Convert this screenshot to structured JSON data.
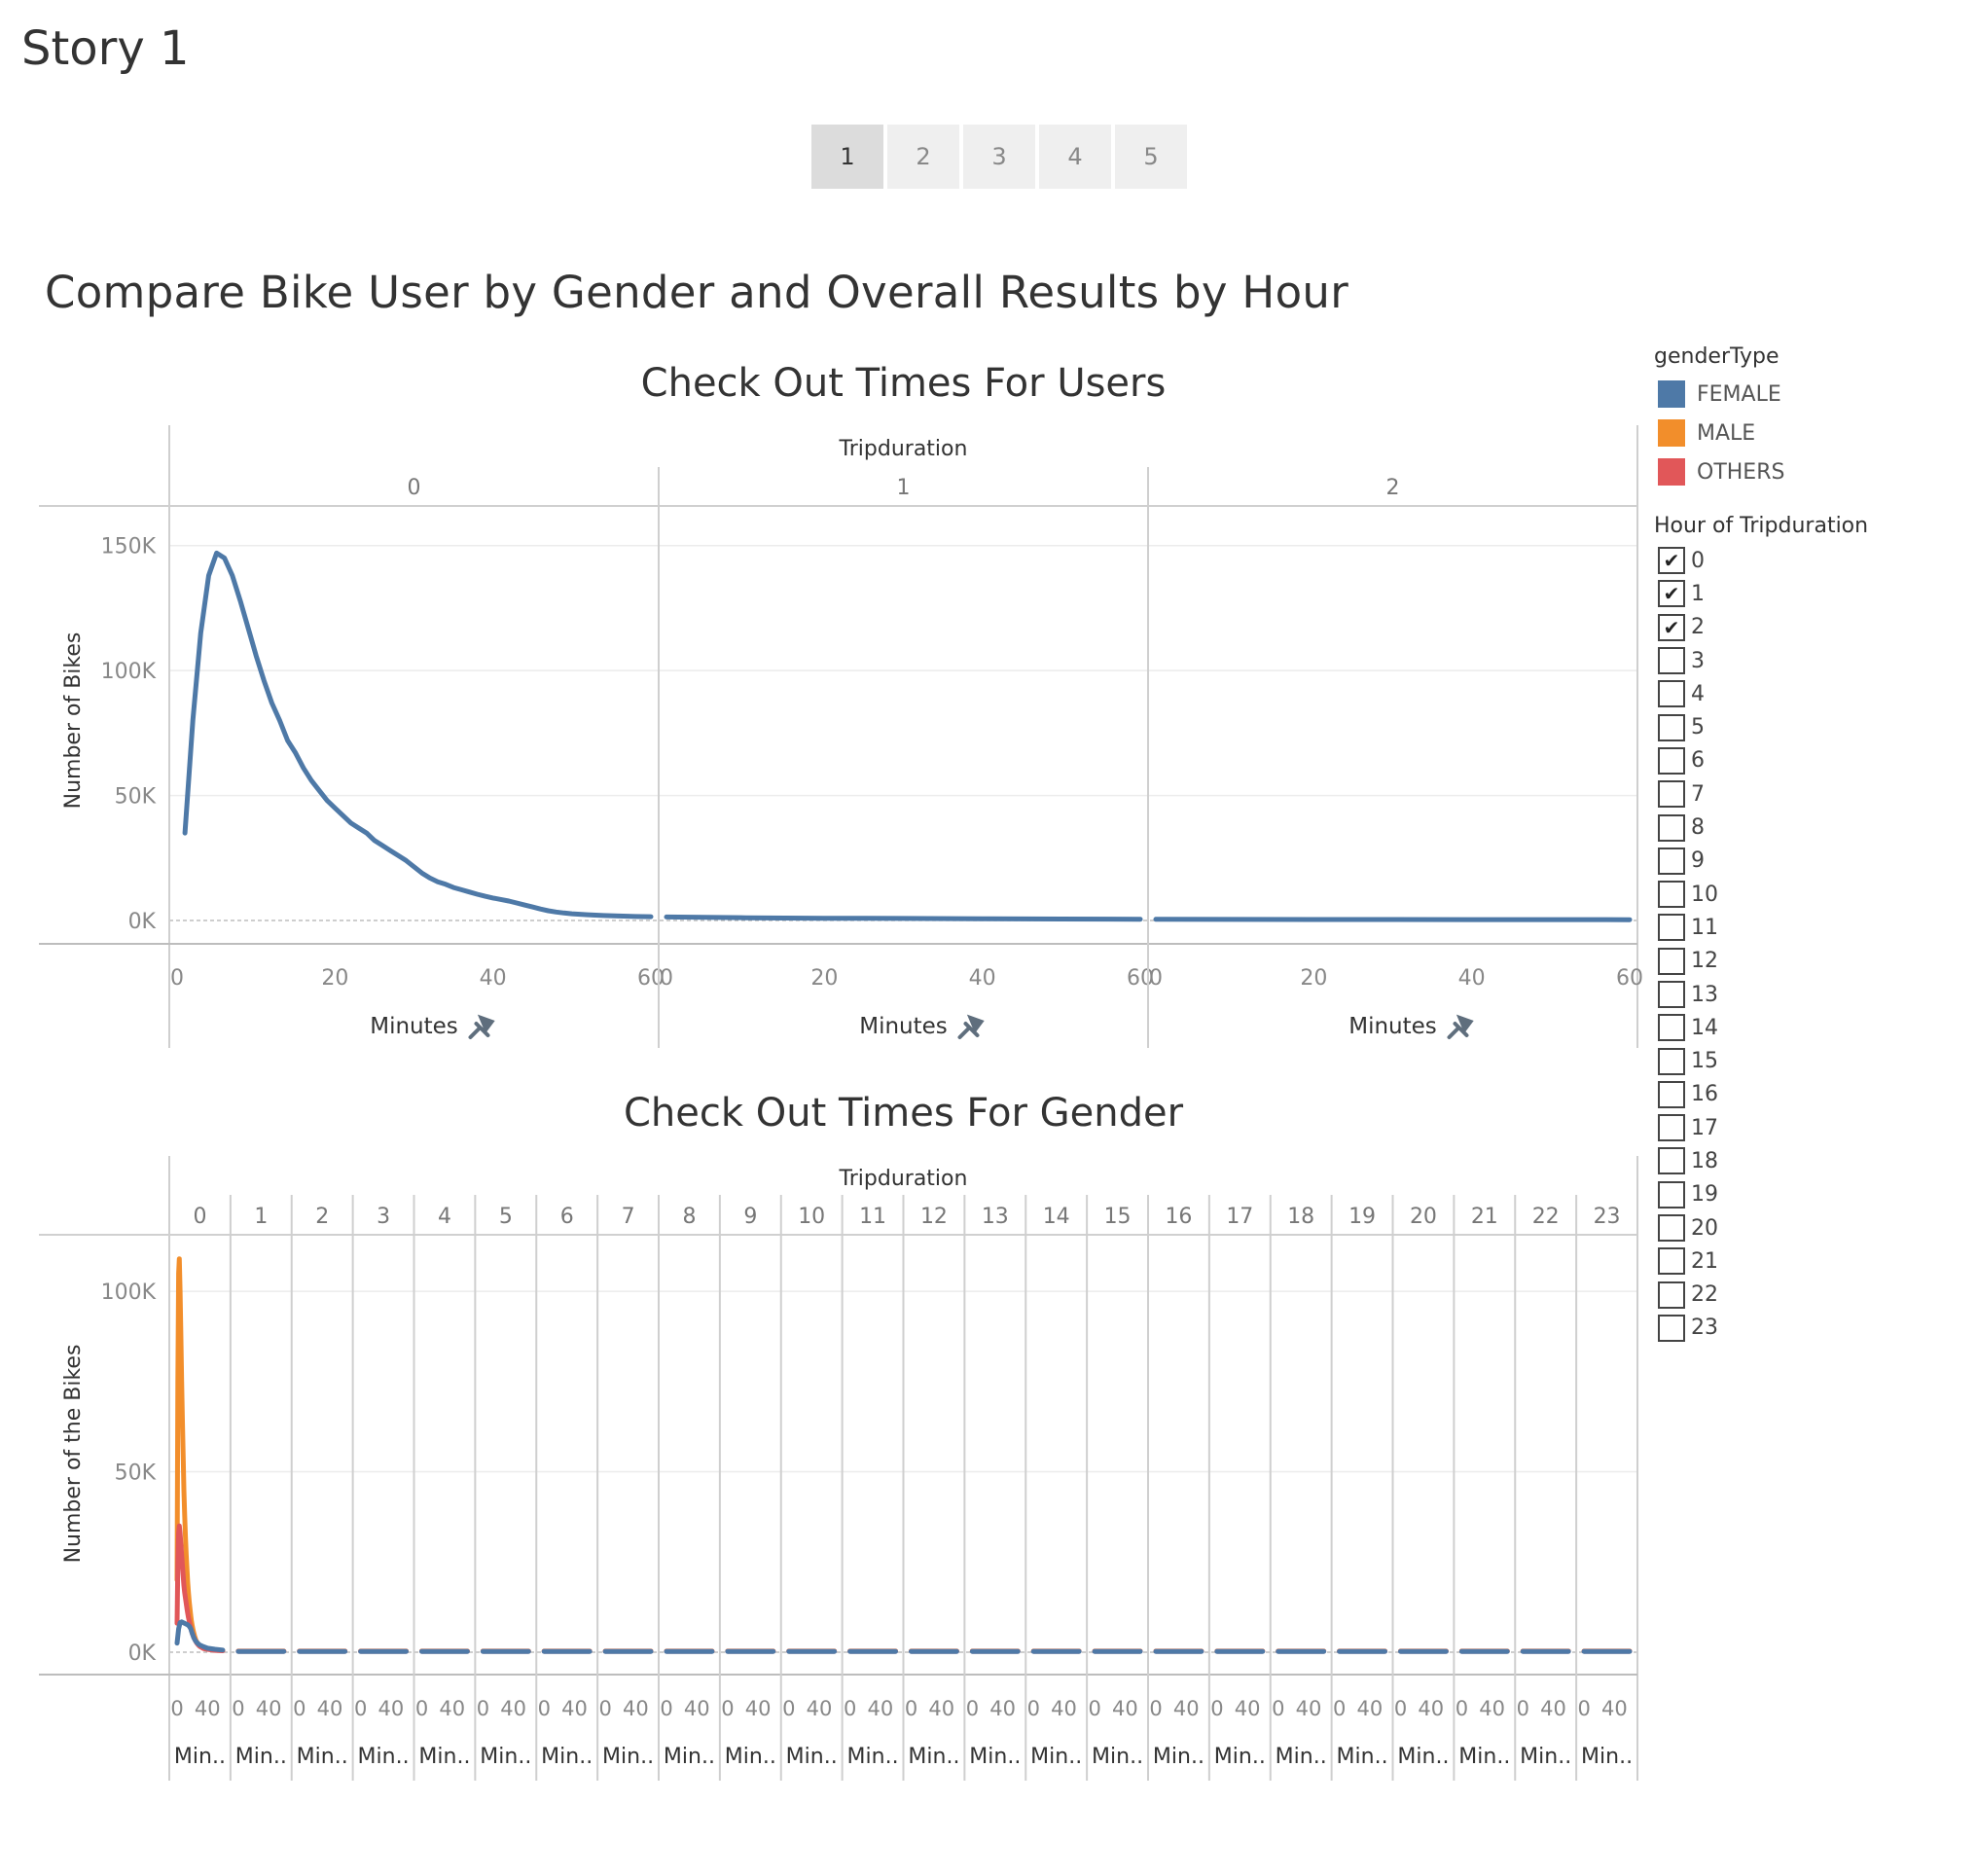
{
  "story": {
    "title": "Story 1",
    "points": [
      "1",
      "2",
      "3",
      "4",
      "5"
    ],
    "active_point": 0
  },
  "dashboard_title": "Compare Bike User by Gender and Overall  Results by Hour",
  "legend": {
    "title": "genderType",
    "items": [
      {
        "label": "FEMALE",
        "color": "#4e79a7"
      },
      {
        "label": "MALE",
        "color": "#f28e2b"
      },
      {
        "label": "OTHERS",
        "color": "#e15759"
      }
    ]
  },
  "hour_filter": {
    "title": "Hour of Tripduration",
    "options": [
      "0",
      "1",
      "2",
      "3",
      "4",
      "5",
      "6",
      "7",
      "8",
      "9",
      "10",
      "11",
      "12",
      "13",
      "14",
      "15",
      "16",
      "17",
      "18",
      "19",
      "20",
      "21",
      "22",
      "23"
    ],
    "checked": [
      "0",
      "1",
      "2"
    ],
    "check_mark": "✔"
  },
  "chart_data": [
    {
      "type": "line",
      "title": "Check Out Times For Users",
      "column_header": "Tripduration",
      "panels": [
        "0",
        "1",
        "2"
      ],
      "xlabel": "Minutes",
      "ylabel": "Number of Bikes",
      "xlim": [
        0,
        60
      ],
      "x_ticks": [
        0,
        20,
        40,
        60
      ],
      "ylim": [
        0,
        160000
      ],
      "y_ticks": [
        0,
        50000,
        100000,
        150000
      ],
      "y_tick_labels": [
        "0K",
        "50K",
        "100K",
        "150K"
      ],
      "series": [
        {
          "color": "#4e79a7",
          "panel_values": [
            [
              [
                1,
                35000
              ],
              [
                2,
                80000
              ],
              [
                3,
                115000
              ],
              [
                4,
                138000
              ],
              [
                5,
                147000
              ],
              [
                6,
                145000
              ],
              [
                7,
                138000
              ],
              [
                8,
                128000
              ],
              [
                9,
                117000
              ],
              [
                10,
                106000
              ],
              [
                11,
                96000
              ],
              [
                12,
                87000
              ],
              [
                13,
                80000
              ],
              [
                14,
                72000
              ],
              [
                15,
                67000
              ],
              [
                16,
                61000
              ],
              [
                17,
                56000
              ],
              [
                18,
                52000
              ],
              [
                19,
                48000
              ],
              [
                20,
                45000
              ],
              [
                21,
                42000
              ],
              [
                22,
                39000
              ],
              [
                23,
                37000
              ],
              [
                24,
                35000
              ],
              [
                25,
                32000
              ],
              [
                26,
                30000
              ],
              [
                27,
                28000
              ],
              [
                28,
                26000
              ],
              [
                29,
                24000
              ],
              [
                30,
                21500
              ],
              [
                31,
                19000
              ],
              [
                32,
                17000
              ],
              [
                33,
                15500
              ],
              [
                34,
                14500
              ],
              [
                35,
                13200
              ],
              [
                36,
                12300
              ],
              [
                37,
                11400
              ],
              [
                38,
                10500
              ],
              [
                39,
                9700
              ],
              [
                40,
                9000
              ],
              [
                41,
                8400
              ],
              [
                42,
                7800
              ],
              [
                43,
                7000
              ],
              [
                44,
                6200
              ],
              [
                45,
                5400
              ],
              [
                46,
                4600
              ],
              [
                47,
                3900
              ],
              [
                48,
                3400
              ],
              [
                49,
                3000
              ],
              [
                50,
                2700
              ],
              [
                52,
                2300
              ],
              [
                54,
                2000
              ],
              [
                56,
                1800
              ],
              [
                58,
                1600
              ],
              [
                60,
                1500
              ]
            ],
            [
              [
                0,
                1400
              ],
              [
                10,
                1100
              ],
              [
                20,
                900
              ],
              [
                30,
                800
              ],
              [
                40,
                700
              ],
              [
                50,
                600
              ],
              [
                60,
                500
              ]
            ],
            [
              [
                0,
                450
              ],
              [
                10,
                420
              ],
              [
                20,
                400
              ],
              [
                30,
                380
              ],
              [
                40,
                360
              ],
              [
                50,
                340
              ],
              [
                60,
                320
              ]
            ]
          ]
        }
      ]
    },
    {
      "type": "line",
      "title": "Check Out Times For Gender",
      "column_header": "Tripduration",
      "panels": [
        "0",
        "1",
        "2",
        "3",
        "4",
        "5",
        "6",
        "7",
        "8",
        "9",
        "10",
        "11",
        "12",
        "13",
        "14",
        "15",
        "16",
        "17",
        "18",
        "19",
        "20",
        "21",
        "22",
        "23"
      ],
      "xlabel": "Min..",
      "ylabel": "Number of the Bikes",
      "xlim": [
        0,
        60
      ],
      "x_ticks": [
        0,
        40
      ],
      "ylim": [
        0,
        110000
      ],
      "y_ticks": [
        0,
        50000,
        100000
      ],
      "y_tick_labels": [
        "0K",
        "50K",
        "100K"
      ],
      "series": [
        {
          "name": "MALE",
          "color": "#f28e2b",
          "panel0": [
            [
              0,
              20000
            ],
            [
              1,
              75000
            ],
            [
              2,
              105000
            ],
            [
              3,
              109000
            ],
            [
              4,
              100000
            ],
            [
              5,
              88000
            ],
            [
              6,
              75000
            ],
            [
              7,
              64000
            ],
            [
              8,
              54000
            ],
            [
              9,
              45000
            ],
            [
              10,
              38000
            ],
            [
              11,
              32000
            ],
            [
              12,
              27000
            ],
            [
              13,
              23000
            ],
            [
              14,
              19500
            ],
            [
              15,
              16500
            ],
            [
              16,
              14000
            ],
            [
              17,
              12000
            ],
            [
              18,
              10000
            ],
            [
              19,
              8500
            ],
            [
              20,
              7300
            ],
            [
              21,
              6200
            ],
            [
              22,
              5300
            ],
            [
              23,
              4500
            ],
            [
              24,
              3800
            ],
            [
              25,
              3200
            ],
            [
              27,
              2500
            ],
            [
              30,
              1800
            ],
            [
              35,
              1200
            ],
            [
              40,
              900
            ],
            [
              50,
              600
            ],
            [
              60,
              500
            ]
          ],
          "rest": 300
        },
        {
          "name": "OTHERS",
          "color": "#e15759",
          "panel0": [
            [
              0,
              8000
            ],
            [
              1,
              25000
            ],
            [
              2,
              33000
            ],
            [
              3,
              35000
            ],
            [
              4,
              33000
            ],
            [
              5,
              30000
            ],
            [
              6,
              27000
            ],
            [
              7,
              24000
            ],
            [
              8,
              21000
            ],
            [
              9,
              18500
            ],
            [
              10,
              16500
            ],
            [
              11,
              15000
            ],
            [
              12,
              13500
            ],
            [
              13,
              12000
            ],
            [
              14,
              10800
            ],
            [
              15,
              9600
            ],
            [
              16,
              8600
            ],
            [
              17,
              7600
            ],
            [
              18,
              6700
            ],
            [
              19,
              5900
            ],
            [
              20,
              5200
            ],
            [
              22,
              4100
            ],
            [
              24,
              3200
            ],
            [
              26,
              2500
            ],
            [
              28,
              2000
            ],
            [
              30,
              1600
            ],
            [
              35,
              1000
            ],
            [
              40,
              800
            ],
            [
              50,
              500
            ],
            [
              60,
              400
            ]
          ],
          "rest": 250
        },
        {
          "name": "FEMALE",
          "color": "#4e79a7",
          "panel0": [
            [
              0,
              2500
            ],
            [
              2,
              6500
            ],
            [
              4,
              8200
            ],
            [
              6,
              8400
            ],
            [
              8,
              8200
            ],
            [
              10,
              8000
            ],
            [
              12,
              7800
            ],
            [
              14,
              7600
            ],
            [
              16,
              7200
            ],
            [
              18,
              6500
            ],
            [
              20,
              5200
            ],
            [
              22,
              4000
            ],
            [
              24,
              3200
            ],
            [
              26,
              2700
            ],
            [
              28,
              2300
            ],
            [
              30,
              2000
            ],
            [
              35,
              1500
            ],
            [
              40,
              1100
            ],
            [
              50,
              800
            ],
            [
              60,
              600
            ]
          ],
          "rest": 200
        }
      ]
    }
  ]
}
